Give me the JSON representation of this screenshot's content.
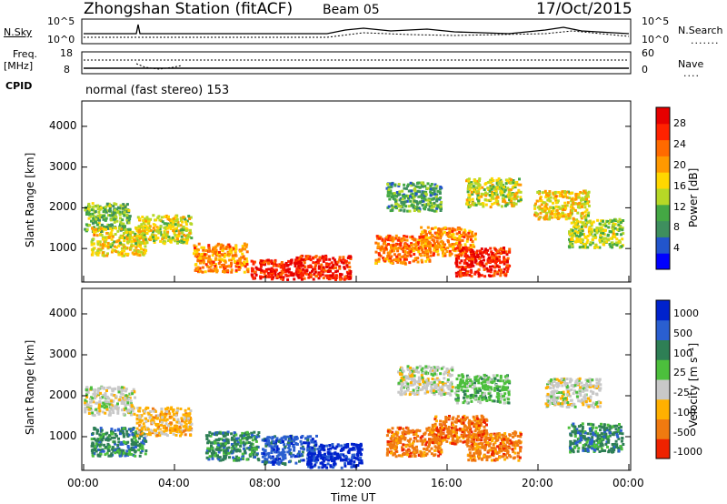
{
  "header": {
    "station": "Zhongshan Station (fitACF)",
    "beam": "Beam 05",
    "date": "17/Oct/2015"
  },
  "sky_panel": {
    "left_label": "N.Sky",
    "left_ticks": [
      "10^5",
      "10^0"
    ],
    "right_label": "N.Search",
    "right_ticks": [
      "10^5",
      "10^0"
    ]
  },
  "freq_panel": {
    "left_label": "Freq.",
    "left_unit": "[MHz]",
    "left_ticks": [
      "18",
      "8"
    ],
    "right_label": "Nave",
    "right_ticks": [
      "60",
      "0"
    ]
  },
  "cpid_panel": {
    "label": "CPID",
    "text": "normal (fast stereo) 153"
  },
  "time_axis": {
    "ticks": [
      "00:00",
      "04:00",
      "08:00",
      "12:00",
      "16:00",
      "20:00",
      "00:00"
    ],
    "label": "Time UT"
  },
  "chart_data": [
    {
      "type": "heatmap",
      "name": "power",
      "ylabel": "Slant Range [km]",
      "yticks": [
        "1000",
        "2000",
        "3000",
        "4000"
      ],
      "ylim": [
        200,
        4600
      ],
      "xlim": [
        0,
        24
      ],
      "colorbar": {
        "label": "Power [dB]",
        "ticks": [
          "4",
          "8",
          "12",
          "16",
          "20",
          "24",
          "28"
        ],
        "colors": [
          "#0000ff",
          "#2255cc",
          "#3e8f5e",
          "#44a844",
          "#b6d826",
          "#ffd700",
          "#ff9900",
          "#ff6a00",
          "#ff2200",
          "#e60000"
        ]
      },
      "blobs": [
        {
          "t": 0.8,
          "r": 1800,
          "level": 0.35
        },
        {
          "t": 1.5,
          "r": 1200,
          "level": 0.55
        },
        {
          "t": 3.5,
          "r": 1500,
          "level": 0.5
        },
        {
          "t": 6.0,
          "r": 800,
          "level": 0.7
        },
        {
          "t": 8.5,
          "r": 400,
          "level": 0.95
        },
        {
          "t": 10.5,
          "r": 500,
          "level": 0.9
        },
        {
          "t": 14.0,
          "r": 1000,
          "level": 0.75
        },
        {
          "t": 16.0,
          "r": 1200,
          "level": 0.7
        },
        {
          "t": 17.5,
          "r": 700,
          "level": 0.95
        },
        {
          "t": 14.5,
          "r": 2300,
          "level": 0.3
        },
        {
          "t": 18.0,
          "r": 2400,
          "level": 0.5
        },
        {
          "t": 21.0,
          "r": 2100,
          "level": 0.55
        },
        {
          "t": 22.5,
          "r": 1400,
          "level": 0.45
        }
      ]
    },
    {
      "type": "heatmap",
      "name": "velocity",
      "ylabel": "Slant Range [km]",
      "yticks": [
        "1000",
        "2000",
        "3000",
        "4000"
      ],
      "ylim": [
        200,
        4600
      ],
      "xlim": [
        0,
        24
      ],
      "colorbar": {
        "label": "Velocity [m s⁻¹]",
        "ticks": [
          "1000",
          "500",
          "100",
          "25",
          "-25",
          "-100",
          "-500",
          "-1000"
        ],
        "colors": [
          "#0022cc",
          "#2a5fd0",
          "#2e7f55",
          "#4cbf3c",
          "#c8c8c8",
          "#ffb000",
          "#f07a10",
          "#ee2200"
        ]
      },
      "blobs": [
        {
          "t": 1.0,
          "r": 1900,
          "level": 4
        },
        {
          "t": 1.5,
          "r": 900,
          "level": 2
        },
        {
          "t": 3.5,
          "r": 1400,
          "level": 5
        },
        {
          "t": 6.5,
          "r": 800,
          "level": 2
        },
        {
          "t": 9.0,
          "r": 700,
          "level": 1
        },
        {
          "t": 11.0,
          "r": 500,
          "level": 0
        },
        {
          "t": 14.5,
          "r": 900,
          "level": 6
        },
        {
          "t": 16.5,
          "r": 1200,
          "level": 6
        },
        {
          "t": 18.0,
          "r": 800,
          "level": 6
        },
        {
          "t": 15.0,
          "r": 2400,
          "level": 4
        },
        {
          "t": 17.5,
          "r": 2200,
          "level": 3
        },
        {
          "t": 21.5,
          "r": 2100,
          "level": 4
        },
        {
          "t": 22.5,
          "r": 1000,
          "level": 2
        }
      ]
    }
  ]
}
